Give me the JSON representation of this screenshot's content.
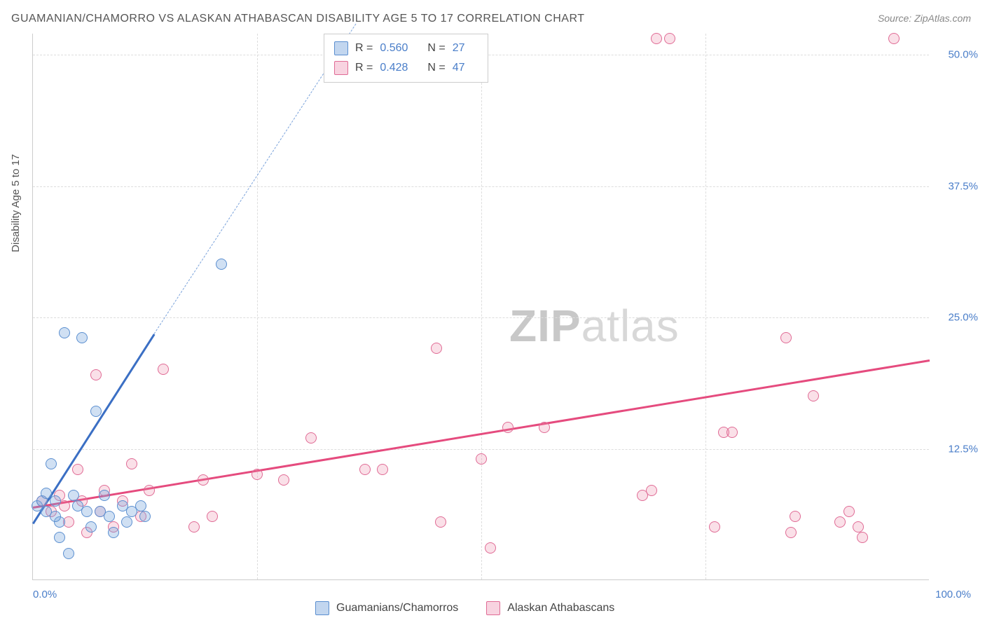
{
  "title": "GUAMANIAN/CHAMORRO VS ALASKAN ATHABASCAN DISABILITY AGE 5 TO 17 CORRELATION CHART",
  "source_label": "Source: ",
  "source_name": "ZipAtlas.com",
  "ylabel": "Disability Age 5 to 17",
  "watermark_bold": "ZIP",
  "watermark_light": "atlas",
  "chart": {
    "type": "scatter",
    "xlim": [
      0,
      100
    ],
    "ylim": [
      0,
      52
    ],
    "ytick_labels": [
      "12.5%",
      "25.0%",
      "37.5%",
      "50.0%"
    ],
    "ytick_values": [
      12.5,
      25.0,
      37.5,
      50.0
    ],
    "xtick_min_label": "0.0%",
    "xtick_max_label": "100.0%",
    "xgrid_values": [
      25,
      50,
      75
    ],
    "background_color": "#ffffff",
    "grid_color": "#dddddd",
    "axis_color": "#cccccc",
    "series_blue": {
      "label": "Guamanians/Chamorros",
      "color_fill": "rgba(120,165,220,0.35)",
      "color_stroke": "#5b8fd0",
      "R": "0.560",
      "N": "27",
      "marker_size": 16,
      "points": [
        [
          0.5,
          7.0
        ],
        [
          1.0,
          7.5
        ],
        [
          1.5,
          6.5
        ],
        [
          2.0,
          11.0
        ],
        [
          2.5,
          7.5
        ],
        [
          3.0,
          5.5
        ],
        [
          3.5,
          23.5
        ],
        [
          4.0,
          2.5
        ],
        [
          4.5,
          8.0
        ],
        [
          5.0,
          7.0
        ],
        [
          5.5,
          23.0
        ],
        [
          6.0,
          6.5
        ],
        [
          6.5,
          5.0
        ],
        [
          7.0,
          16.0
        ],
        [
          7.5,
          6.5
        ],
        [
          8.0,
          8.0
        ],
        [
          8.5,
          6.0
        ],
        [
          9.0,
          4.5
        ],
        [
          10.0,
          7.0
        ],
        [
          10.5,
          5.5
        ],
        [
          11.0,
          6.5
        ],
        [
          12.0,
          7.0
        ],
        [
          12.5,
          6.0
        ],
        [
          21.0,
          30.0
        ],
        [
          3.0,
          4.0
        ],
        [
          1.5,
          8.2
        ],
        [
          2.5,
          6.0
        ]
      ],
      "trend": {
        "x1": 0,
        "y1": 5.5,
        "x2": 13.5,
        "y2": 23.5,
        "dash_x2": 36,
        "dash_y2": 53
      }
    },
    "series_pink": {
      "label": "Alaskan Athabascans",
      "color_fill": "rgba(235,130,165,0.25)",
      "color_stroke": "#e06b95",
      "R": "0.428",
      "N": "47",
      "marker_size": 16,
      "points": [
        [
          1.0,
          7.5
        ],
        [
          2.0,
          6.5
        ],
        [
          3.0,
          8.0
        ],
        [
          4.0,
          5.5
        ],
        [
          5.0,
          10.5
        ],
        [
          5.5,
          7.5
        ],
        [
          6.0,
          4.5
        ],
        [
          7.0,
          19.5
        ],
        [
          7.5,
          6.5
        ],
        [
          8.0,
          8.5
        ],
        [
          9.0,
          5.0
        ],
        [
          10.0,
          7.5
        ],
        [
          11.0,
          11.0
        ],
        [
          12.0,
          6.0
        ],
        [
          13.0,
          8.5
        ],
        [
          14.5,
          20.0
        ],
        [
          18.0,
          5.0
        ],
        [
          19.0,
          9.5
        ],
        [
          20.0,
          6.0
        ],
        [
          25.0,
          10.0
        ],
        [
          28.0,
          9.5
        ],
        [
          31.0,
          13.5
        ],
        [
          37.0,
          10.5
        ],
        [
          39.0,
          10.5
        ],
        [
          45.0,
          22.0
        ],
        [
          45.5,
          5.5
        ],
        [
          50.0,
          11.5
        ],
        [
          51.0,
          3.0
        ],
        [
          53.0,
          14.5
        ],
        [
          57.0,
          14.5
        ],
        [
          68.0,
          8.0
        ],
        [
          69.0,
          8.5
        ],
        [
          69.5,
          51.5
        ],
        [
          71.0,
          51.5
        ],
        [
          76.0,
          5.0
        ],
        [
          77.0,
          14.0
        ],
        [
          78.0,
          14.0
        ],
        [
          84.0,
          23.0
        ],
        [
          84.5,
          4.5
        ],
        [
          85.0,
          6.0
        ],
        [
          87.0,
          17.5
        ],
        [
          90.0,
          5.5
        ],
        [
          91.0,
          6.5
        ],
        [
          92.0,
          5.0
        ],
        [
          92.5,
          4.0
        ],
        [
          96.0,
          51.5
        ],
        [
          3.5,
          7.0
        ]
      ],
      "trend": {
        "x1": 0,
        "y1": 7.0,
        "x2": 100,
        "y2": 21.0
      }
    }
  },
  "legend_top": {
    "r_prefix": "R = ",
    "n_prefix": "N = "
  }
}
